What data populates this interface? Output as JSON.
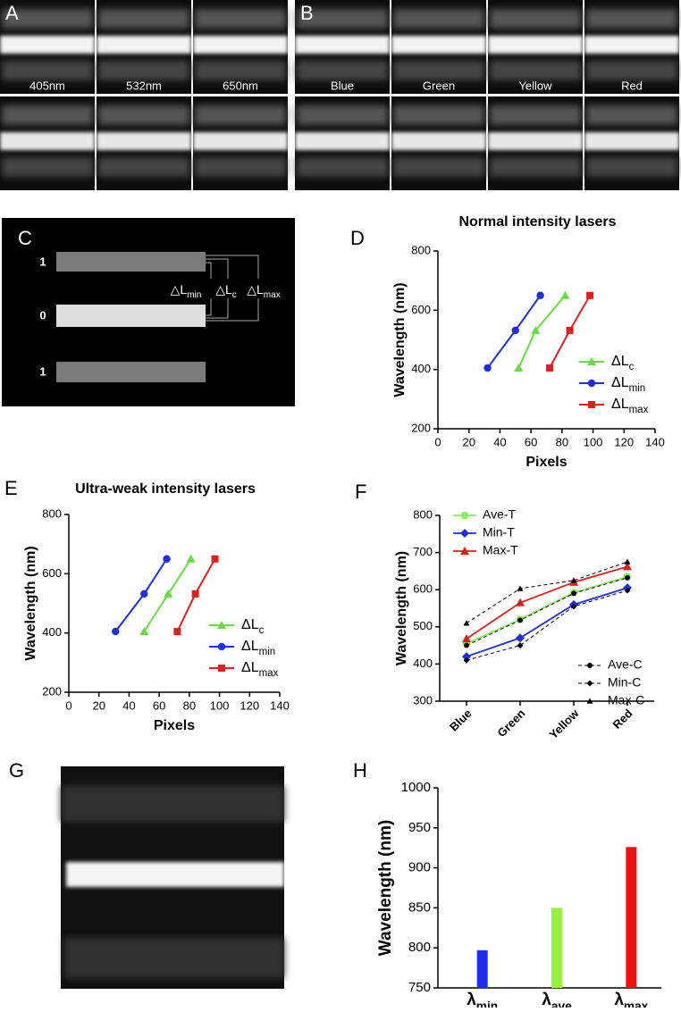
{
  "panels": {
    "A": {
      "letter": "A",
      "labels": [
        "405nm",
        "532nm",
        "650nm"
      ]
    },
    "B": {
      "letter": "B",
      "labels": [
        "Blue",
        "Green",
        "Yellow",
        "Red"
      ]
    },
    "C": {
      "letter": "C",
      "rows": [
        "1",
        "0",
        "1"
      ],
      "labels": [
        "△Lmin",
        "△Lc",
        "△Lmax"
      ]
    },
    "D": {
      "letter": "D"
    },
    "E": {
      "letter": "E"
    },
    "F": {
      "letter": "F"
    },
    "G": {
      "letter": "G"
    },
    "H": {
      "letter": "H"
    }
  },
  "chart_data": [
    {
      "type": "line",
      "title": "Normal intensity lasers",
      "x_label": "Pixels",
      "y_label": "Wavelength (nm)",
      "xlim": [
        0,
        140
      ],
      "xticks": [
        0,
        20,
        40,
        60,
        80,
        100,
        120,
        140
      ],
      "ylim": [
        200,
        800
      ],
      "yticks": [
        200,
        400,
        600,
        800
      ],
      "series": [
        {
          "name": "ΔLc",
          "color": "#66dd44",
          "marker": "triangle",
          "x": [
            52,
            63,
            82
          ],
          "values": [
            405,
            532,
            650
          ]
        },
        {
          "name": "ΔLmin",
          "color": "#1f2fdd",
          "marker": "circle",
          "x": [
            32,
            50,
            66
          ],
          "values": [
            405,
            532,
            650
          ]
        },
        {
          "name": "ΔLmax",
          "color": "#dd1f1f",
          "marker": "square",
          "x": [
            72,
            85,
            98
          ],
          "values": [
            405,
            532,
            650
          ]
        }
      ]
    },
    {
      "type": "line",
      "title": "Ultra-weak intensity lasers",
      "x_label": "Pixels",
      "y_label": "Wavelength (nm)",
      "xlim": [
        0,
        140
      ],
      "xticks": [
        0,
        20,
        40,
        60,
        80,
        100,
        120,
        140
      ],
      "ylim": [
        200,
        800
      ],
      "yticks": [
        200,
        400,
        600,
        800
      ],
      "series": [
        {
          "name": "ΔLc",
          "color": "#66dd44",
          "marker": "triangle",
          "x": [
            50,
            66,
            81
          ],
          "values": [
            405,
            532,
            650
          ]
        },
        {
          "name": "ΔLmin",
          "color": "#1f2fdd",
          "marker": "circle",
          "x": [
            31,
            50,
            65
          ],
          "values": [
            405,
            532,
            650
          ]
        },
        {
          "name": "ΔLmax",
          "color": "#dd1f1f",
          "marker": "square",
          "x": [
            72,
            84,
            97
          ],
          "values": [
            405,
            532,
            650
          ]
        }
      ]
    },
    {
      "type": "category-line",
      "y_label": "Wavelength (nm)",
      "categories": [
        "Blue",
        "Green",
        "Yellow",
        "Red"
      ],
      "ylim": [
        300,
        800
      ],
      "yticks": [
        300,
        400,
        500,
        600,
        700,
        800
      ],
      "series": [
        {
          "name": "Ave-T",
          "color": "#88ee55",
          "marker": "circle",
          "dashed": false,
          "legend": "upper left",
          "values": [
            455,
            520,
            592,
            635
          ]
        },
        {
          "name": "Min-T",
          "color": "#1f2fdd",
          "marker": "diamond",
          "dashed": false,
          "legend": "upper left",
          "values": [
            420,
            470,
            560,
            605
          ]
        },
        {
          "name": "Max-T",
          "color": "#dd1f1f",
          "marker": "triangle",
          "dashed": false,
          "legend": "upper left",
          "values": [
            468,
            565,
            620,
            662
          ]
        },
        {
          "name": "Ave-C",
          "color": "#000000",
          "marker": "circle",
          "dashed": true,
          "legend": "lower right",
          "values": [
            450,
            518,
            590,
            632
          ]
        },
        {
          "name": "Min-C",
          "color": "#000000",
          "marker": "diamond",
          "dashed": true,
          "legend": "lower right",
          "values": [
            410,
            450,
            555,
            598
          ]
        },
        {
          "name": "Max-C",
          "color": "#000000",
          "marker": "triangle",
          "dashed": true,
          "legend": "lower right",
          "values": [
            510,
            603,
            625,
            675
          ]
        }
      ]
    },
    {
      "type": "bar",
      "y_label": "Wavelength (nm)",
      "categories": [
        "λmin",
        "λave",
        "λmax"
      ],
      "values": [
        797,
        850,
        926
      ],
      "colors": [
        "#1f2fee",
        "#99ee44",
        "#ee1111"
      ],
      "ylim": [
        750,
        1000
      ],
      "yticks": [
        750,
        800,
        850,
        900,
        950,
        1000
      ]
    }
  ]
}
